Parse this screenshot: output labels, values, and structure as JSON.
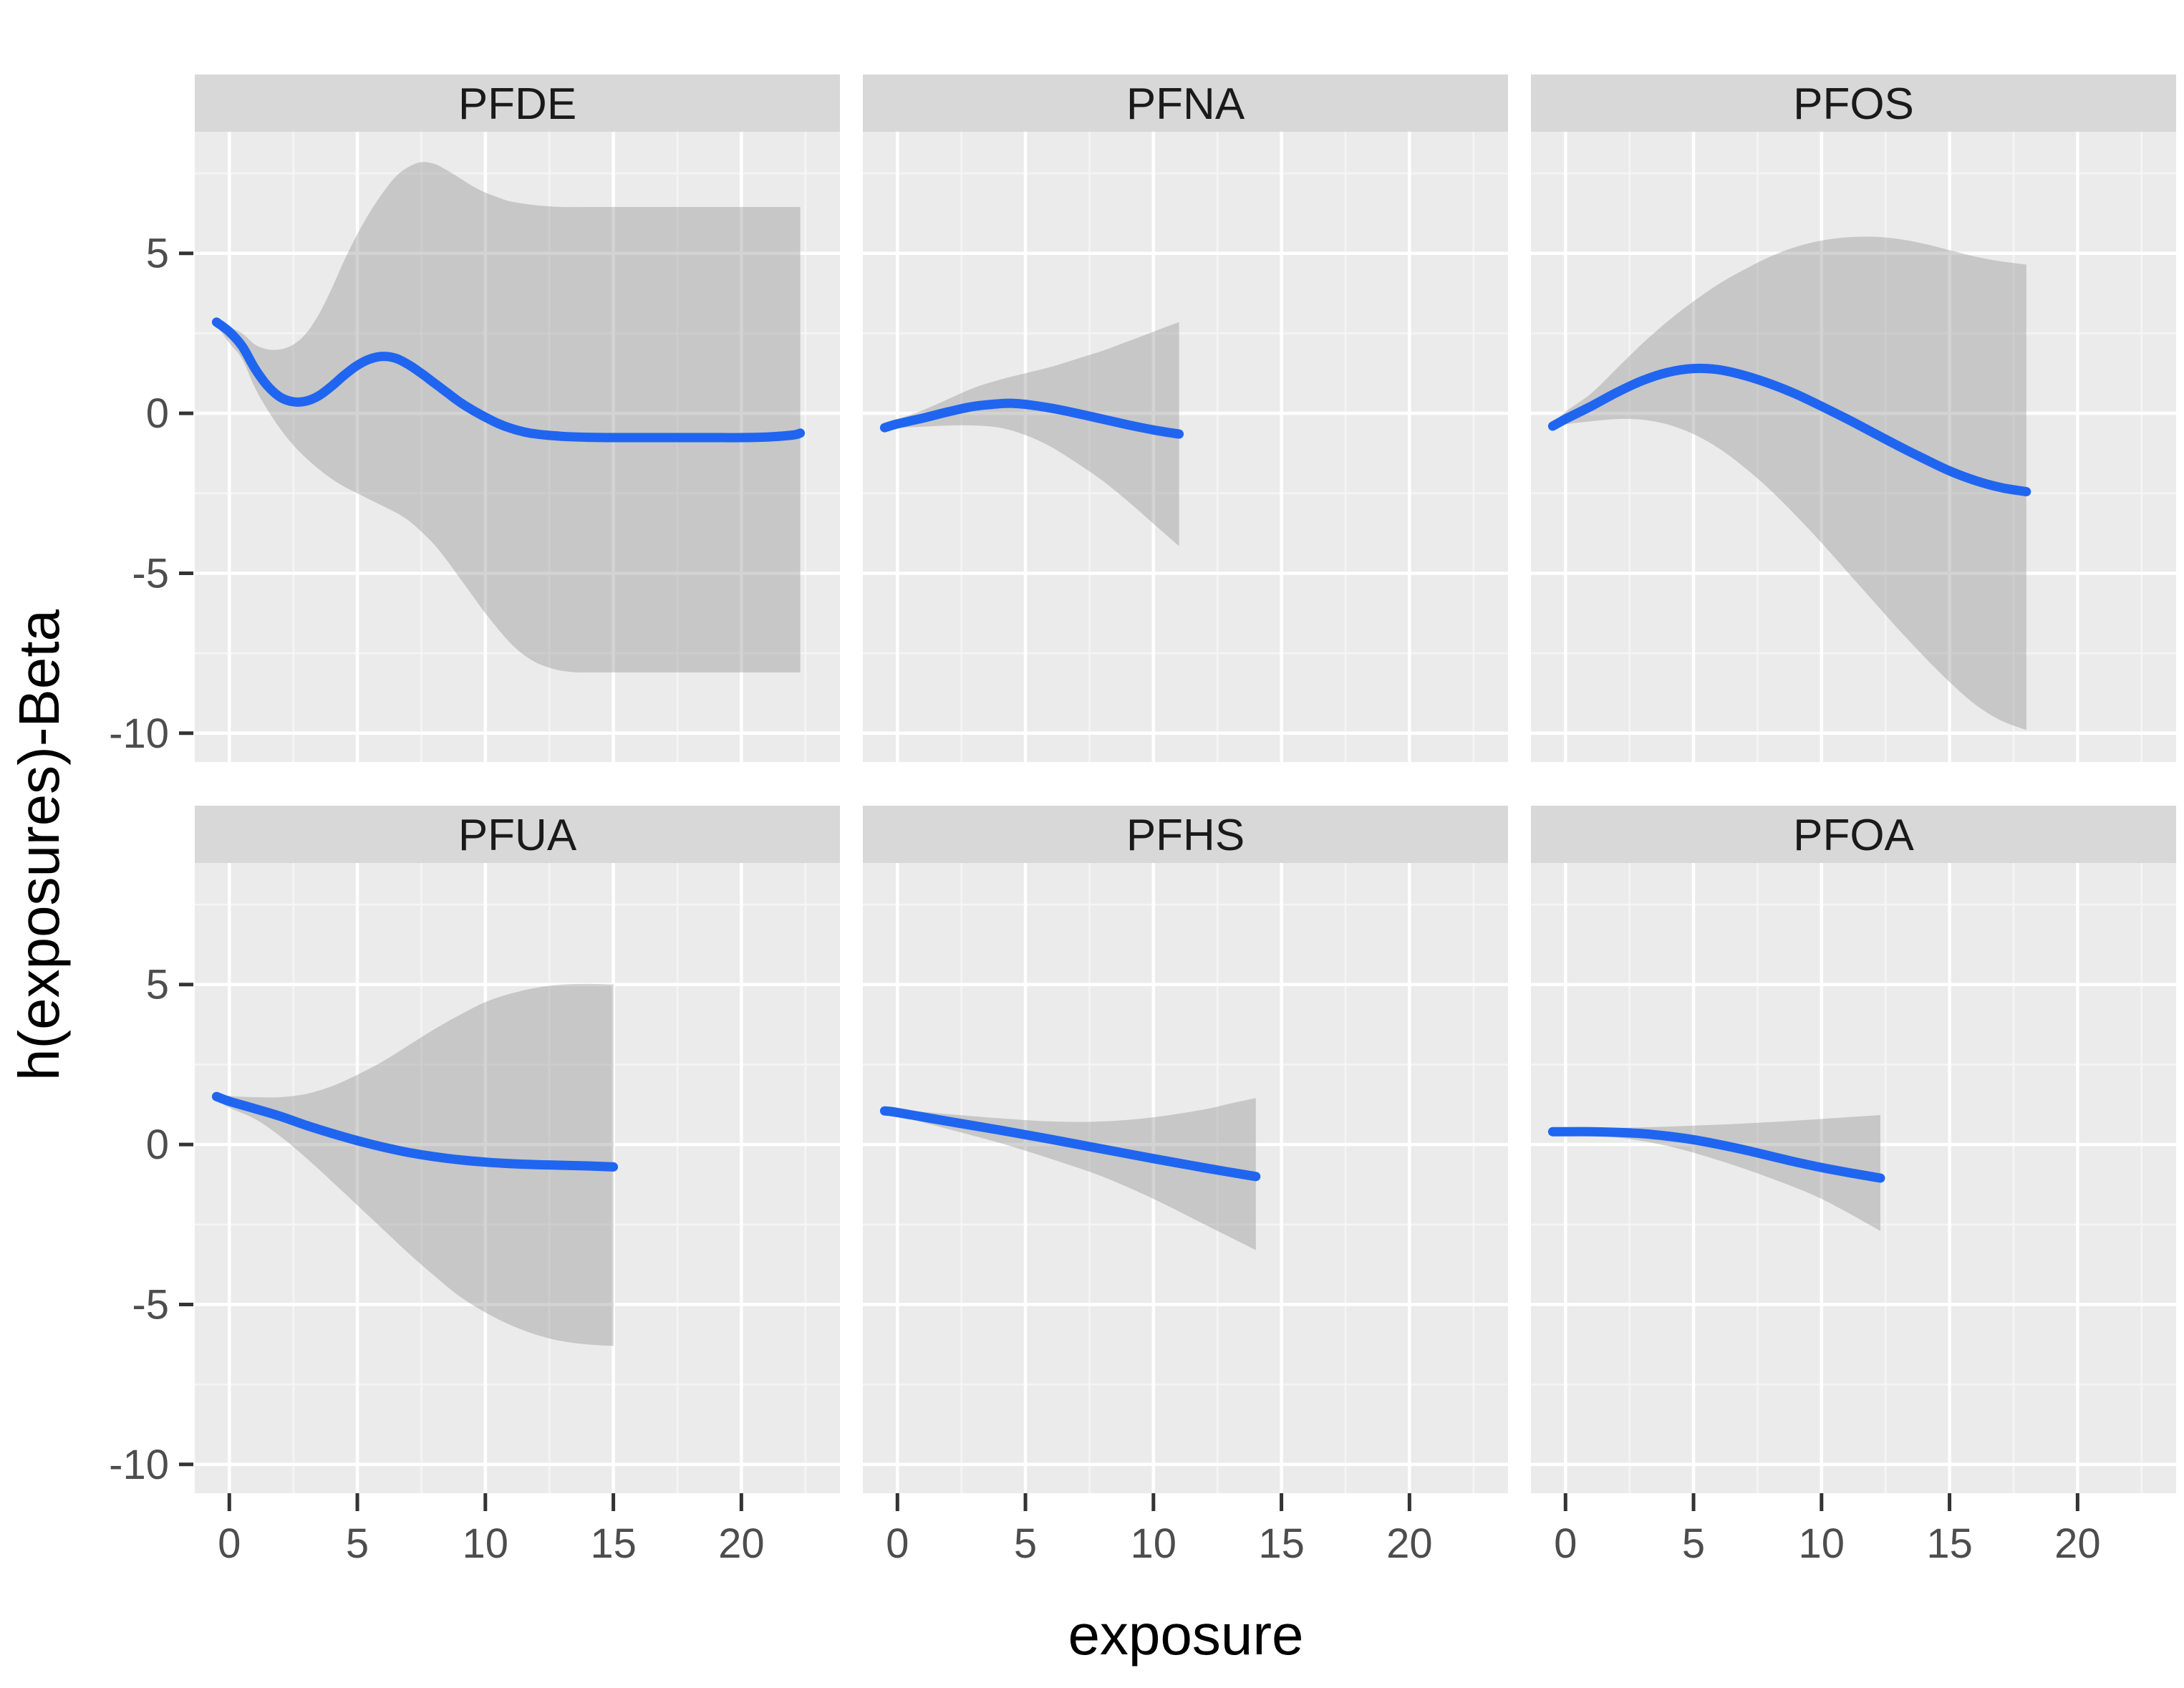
{
  "figure": {
    "x_axis_title": "exposure",
    "y_axis_title": "h(exposures)-Beta"
  },
  "chart_data": {
    "type": "area",
    "subtype": "faceted-smooth-line-with-ci-ribbon",
    "title": "",
    "xlabel": "exposure",
    "ylabel": "h(exposures)-Beta",
    "legend": "none",
    "grid": "white major and minor gridlines on gray panels",
    "x_ticks": [
      0,
      5,
      10,
      15,
      20
    ],
    "y_ticks": [
      5,
      0,
      -5,
      -10
    ],
    "xlim": [
      -1.35,
      23.85
    ],
    "ylim": [
      -10.9,
      8.8
    ],
    "colors": {
      "line": "#2065F0",
      "ribbon": "rgba(150,150,150,0.42)",
      "panel_bg": "#EBEBEB",
      "strip_bg": "#D8D8D8",
      "strip_text": "#1A1A1A",
      "grid_major": "#FFFFFF",
      "grid_minor": "#F5F5F5",
      "tick_label": "#4D4D4D",
      "tick_mark": "#333333",
      "axis_title": "#000000"
    },
    "facets": [
      {
        "label": "PFDE",
        "row": 0,
        "col": 0,
        "line": [
          [
            -0.5,
            2.85
          ],
          [
            0,
            2.55
          ],
          [
            0.5,
            2.1
          ],
          [
            1,
            1.4
          ],
          [
            1.5,
            0.85
          ],
          [
            2,
            0.5
          ],
          [
            2.5,
            0.36
          ],
          [
            3,
            0.38
          ],
          [
            3.5,
            0.55
          ],
          [
            4,
            0.85
          ],
          [
            4.5,
            1.2
          ],
          [
            5,
            1.5
          ],
          [
            5.5,
            1.7
          ],
          [
            6,
            1.78
          ],
          [
            6.5,
            1.72
          ],
          [
            7,
            1.52
          ],
          [
            7.5,
            1.25
          ],
          [
            8,
            0.95
          ],
          [
            8.5,
            0.65
          ],
          [
            9,
            0.35
          ],
          [
            9.5,
            0.1
          ],
          [
            10,
            -0.12
          ],
          [
            10.5,
            -0.32
          ],
          [
            11,
            -0.47
          ],
          [
            11.5,
            -0.58
          ],
          [
            12,
            -0.65
          ],
          [
            13,
            -0.72
          ],
          [
            14,
            -0.75
          ],
          [
            15,
            -0.76
          ],
          [
            16,
            -0.76
          ],
          [
            17,
            -0.76
          ],
          [
            18,
            -0.76
          ],
          [
            19,
            -0.76
          ],
          [
            20,
            -0.76
          ],
          [
            21,
            -0.74
          ],
          [
            22,
            -0.68
          ],
          [
            22.3,
            -0.62
          ]
        ],
        "ribbon_upper": [
          [
            -0.5,
            2.95
          ],
          [
            0,
            2.7
          ],
          [
            0.5,
            2.5
          ],
          [
            1,
            2.15
          ],
          [
            1.5,
            2.0
          ],
          [
            2,
            2.0
          ],
          [
            2.5,
            2.15
          ],
          [
            3,
            2.5
          ],
          [
            3.5,
            3.1
          ],
          [
            4,
            3.9
          ],
          [
            4.5,
            4.8
          ],
          [
            5,
            5.6
          ],
          [
            5.5,
            6.3
          ],
          [
            6,
            6.9
          ],
          [
            6.5,
            7.4
          ],
          [
            7,
            7.7
          ],
          [
            7.5,
            7.85
          ],
          [
            8,
            7.8
          ],
          [
            8.5,
            7.6
          ],
          [
            9,
            7.35
          ],
          [
            9.5,
            7.1
          ],
          [
            10,
            6.9
          ],
          [
            10.5,
            6.75
          ],
          [
            11,
            6.62
          ],
          [
            12,
            6.5
          ],
          [
            13,
            6.45
          ],
          [
            14,
            6.45
          ],
          [
            16,
            6.45
          ],
          [
            18,
            6.45
          ],
          [
            20,
            6.45
          ],
          [
            22.3,
            6.45
          ]
        ],
        "ribbon_lower": [
          [
            -0.5,
            2.75
          ],
          [
            0,
            2.2
          ],
          [
            0.5,
            1.7
          ],
          [
            1,
            0.8
          ],
          [
            1.5,
            0.1
          ],
          [
            2,
            -0.5
          ],
          [
            2.5,
            -1.0
          ],
          [
            3,
            -1.4
          ],
          [
            3.5,
            -1.75
          ],
          [
            4,
            -2.05
          ],
          [
            4.5,
            -2.3
          ],
          [
            5,
            -2.5
          ],
          [
            5.5,
            -2.7
          ],
          [
            6,
            -2.9
          ],
          [
            6.5,
            -3.1
          ],
          [
            7,
            -3.35
          ],
          [
            7.5,
            -3.7
          ],
          [
            8,
            -4.1
          ],
          [
            8.5,
            -4.6
          ],
          [
            9,
            -5.15
          ],
          [
            9.5,
            -5.7
          ],
          [
            10,
            -6.25
          ],
          [
            10.5,
            -6.75
          ],
          [
            11,
            -7.2
          ],
          [
            11.5,
            -7.55
          ],
          [
            12,
            -7.8
          ],
          [
            12.5,
            -7.95
          ],
          [
            13,
            -8.05
          ],
          [
            13.6,
            -8.1
          ],
          [
            14,
            -8.1
          ],
          [
            16,
            -8.1
          ],
          [
            18,
            -8.1
          ],
          [
            20,
            -8.1
          ],
          [
            22.3,
            -8.1
          ]
        ]
      },
      {
        "label": "PFNA",
        "row": 0,
        "col": 1,
        "line": [
          [
            -0.5,
            -0.45
          ],
          [
            0,
            -0.33
          ],
          [
            1,
            -0.15
          ],
          [
            2,
            0.05
          ],
          [
            3,
            0.22
          ],
          [
            4,
            0.3
          ],
          [
            4.5,
            0.31
          ],
          [
            5,
            0.28
          ],
          [
            6,
            0.16
          ],
          [
            7,
            0.0
          ],
          [
            8,
            -0.18
          ],
          [
            9,
            -0.36
          ],
          [
            10,
            -0.52
          ],
          [
            11,
            -0.65
          ]
        ],
        "ribbon_upper": [
          [
            -0.5,
            -0.38
          ],
          [
            0,
            -0.2
          ],
          [
            1,
            0.1
          ],
          [
            2,
            0.45
          ],
          [
            3,
            0.8
          ],
          [
            4,
            1.05
          ],
          [
            5,
            1.25
          ],
          [
            6,
            1.45
          ],
          [
            7,
            1.7
          ],
          [
            8,
            1.95
          ],
          [
            9,
            2.25
          ],
          [
            10,
            2.55
          ],
          [
            11,
            2.85
          ]
        ],
        "ribbon_lower": [
          [
            -0.5,
            -0.52
          ],
          [
            0,
            -0.45
          ],
          [
            1,
            -0.42
          ],
          [
            2,
            -0.38
          ],
          [
            3,
            -0.38
          ],
          [
            4,
            -0.45
          ],
          [
            5,
            -0.68
          ],
          [
            6,
            -1.05
          ],
          [
            7,
            -1.55
          ],
          [
            8,
            -2.1
          ],
          [
            9,
            -2.75
          ],
          [
            10,
            -3.45
          ],
          [
            11,
            -4.15
          ]
        ]
      },
      {
        "label": "PFOS",
        "row": 0,
        "col": 2,
        "line": [
          [
            -0.5,
            -0.4
          ],
          [
            0,
            -0.18
          ],
          [
            1,
            0.22
          ],
          [
            2,
            0.65
          ],
          [
            3,
            1.02
          ],
          [
            4,
            1.28
          ],
          [
            5,
            1.4
          ],
          [
            6,
            1.36
          ],
          [
            7,
            1.18
          ],
          [
            8,
            0.92
          ],
          [
            9,
            0.6
          ],
          [
            10,
            0.22
          ],
          [
            11,
            -0.18
          ],
          [
            12,
            -0.6
          ],
          [
            13,
            -1.02
          ],
          [
            14,
            -1.42
          ],
          [
            15,
            -1.8
          ],
          [
            16,
            -2.1
          ],
          [
            17,
            -2.32
          ],
          [
            18,
            -2.45
          ]
        ],
        "ribbon_upper": [
          [
            -0.5,
            -0.32
          ],
          [
            0,
            0.05
          ],
          [
            1,
            0.62
          ],
          [
            2,
            1.4
          ],
          [
            3,
            2.18
          ],
          [
            4,
            2.88
          ],
          [
            5,
            3.5
          ],
          [
            6,
            4.05
          ],
          [
            7,
            4.5
          ],
          [
            8,
            4.9
          ],
          [
            9,
            5.2
          ],
          [
            10,
            5.4
          ],
          [
            11,
            5.5
          ],
          [
            12,
            5.52
          ],
          [
            13,
            5.45
          ],
          [
            14,
            5.3
          ],
          [
            15,
            5.1
          ],
          [
            16,
            4.9
          ],
          [
            17,
            4.75
          ],
          [
            18,
            4.65
          ]
        ],
        "ribbon_lower": [
          [
            -0.5,
            -0.48
          ],
          [
            0,
            -0.35
          ],
          [
            1,
            -0.25
          ],
          [
            2,
            -0.18
          ],
          [
            3,
            -0.2
          ],
          [
            4,
            -0.35
          ],
          [
            5,
            -0.65
          ],
          [
            6,
            -1.1
          ],
          [
            7,
            -1.7
          ],
          [
            8,
            -2.4
          ],
          [
            9,
            -3.2
          ],
          [
            10,
            -4.05
          ],
          [
            11,
            -4.95
          ],
          [
            12,
            -5.85
          ],
          [
            13,
            -6.75
          ],
          [
            14,
            -7.6
          ],
          [
            15,
            -8.4
          ],
          [
            16,
            -9.1
          ],
          [
            17,
            -9.6
          ],
          [
            18,
            -9.9
          ]
        ]
      },
      {
        "label": "PFUA",
        "row": 1,
        "col": 0,
        "line": [
          [
            -0.5,
            1.5
          ],
          [
            0,
            1.35
          ],
          [
            1,
            1.12
          ],
          [
            2,
            0.88
          ],
          [
            3,
            0.6
          ],
          [
            4,
            0.35
          ],
          [
            5,
            0.12
          ],
          [
            6,
            -0.08
          ],
          [
            7,
            -0.25
          ],
          [
            8,
            -0.38
          ],
          [
            9,
            -0.48
          ],
          [
            10,
            -0.55
          ],
          [
            11,
            -0.6
          ],
          [
            12,
            -0.63
          ],
          [
            13,
            -0.65
          ],
          [
            14,
            -0.67
          ],
          [
            15,
            -0.7
          ]
        ],
        "ribbon_upper": [
          [
            -0.5,
            1.6
          ],
          [
            0,
            1.52
          ],
          [
            1,
            1.48
          ],
          [
            2,
            1.48
          ],
          [
            3,
            1.58
          ],
          [
            4,
            1.82
          ],
          [
            5,
            2.18
          ],
          [
            6,
            2.6
          ],
          [
            7,
            3.1
          ],
          [
            8,
            3.6
          ],
          [
            9,
            4.05
          ],
          [
            10,
            4.45
          ],
          [
            11,
            4.72
          ],
          [
            12,
            4.9
          ],
          [
            13,
            5.0
          ],
          [
            14,
            5.02
          ],
          [
            15,
            5.0
          ]
        ],
        "ribbon_lower": [
          [
            -0.5,
            1.4
          ],
          [
            0,
            1.15
          ],
          [
            1,
            0.8
          ],
          [
            2,
            0.25
          ],
          [
            3,
            -0.42
          ],
          [
            4,
            -1.15
          ],
          [
            5,
            -1.9
          ],
          [
            6,
            -2.65
          ],
          [
            7,
            -3.4
          ],
          [
            8,
            -4.1
          ],
          [
            9,
            -4.75
          ],
          [
            10,
            -5.25
          ],
          [
            11,
            -5.65
          ],
          [
            12,
            -5.95
          ],
          [
            13,
            -6.15
          ],
          [
            14,
            -6.25
          ],
          [
            15,
            -6.3
          ]
        ]
      },
      {
        "label": "PFHS",
        "row": 1,
        "col": 1,
        "line": [
          [
            -0.5,
            1.05
          ],
          [
            0,
            1.0
          ],
          [
            2,
            0.72
          ],
          [
            4,
            0.45
          ],
          [
            6,
            0.16
          ],
          [
            8,
            -0.14
          ],
          [
            10,
            -0.44
          ],
          [
            12,
            -0.73
          ],
          [
            14,
            -1.0
          ]
        ],
        "ribbon_upper": [
          [
            -0.5,
            1.15
          ],
          [
            0,
            1.1
          ],
          [
            2,
            0.95
          ],
          [
            4,
            0.82
          ],
          [
            6,
            0.72
          ],
          [
            8,
            0.72
          ],
          [
            10,
            0.85
          ],
          [
            12,
            1.1
          ],
          [
            13,
            1.28
          ],
          [
            14,
            1.45
          ]
        ],
        "ribbon_lower": [
          [
            -0.5,
            0.95
          ],
          [
            0,
            0.9
          ],
          [
            2,
            0.48
          ],
          [
            4,
            0.05
          ],
          [
            6,
            -0.45
          ],
          [
            8,
            -1.0
          ],
          [
            10,
            -1.7
          ],
          [
            12,
            -2.5
          ],
          [
            14,
            -3.3
          ]
        ]
      },
      {
        "label": "PFOA",
        "row": 1,
        "col": 2,
        "line": [
          [
            -0.5,
            0.4
          ],
          [
            0,
            0.4
          ],
          [
            1,
            0.4
          ],
          [
            2,
            0.38
          ],
          [
            3,
            0.34
          ],
          [
            4,
            0.26
          ],
          [
            5,
            0.15
          ],
          [
            6,
            0.0
          ],
          [
            7,
            -0.17
          ],
          [
            8,
            -0.36
          ],
          [
            9,
            -0.55
          ],
          [
            10,
            -0.72
          ],
          [
            11,
            -0.87
          ],
          [
            12.3,
            -1.05
          ]
        ],
        "ribbon_upper": [
          [
            -0.5,
            0.5
          ],
          [
            0,
            0.5
          ],
          [
            2,
            0.52
          ],
          [
            4,
            0.56
          ],
          [
            6,
            0.62
          ],
          [
            8,
            0.7
          ],
          [
            10,
            0.8
          ],
          [
            12.3,
            0.92
          ]
        ],
        "ribbon_lower": [
          [
            -0.5,
            0.3
          ],
          [
            0,
            0.28
          ],
          [
            2,
            0.22
          ],
          [
            4,
            -0.05
          ],
          [
            6,
            -0.5
          ],
          [
            8,
            -1.05
          ],
          [
            10,
            -1.7
          ],
          [
            12.3,
            -2.7
          ]
        ]
      }
    ]
  }
}
